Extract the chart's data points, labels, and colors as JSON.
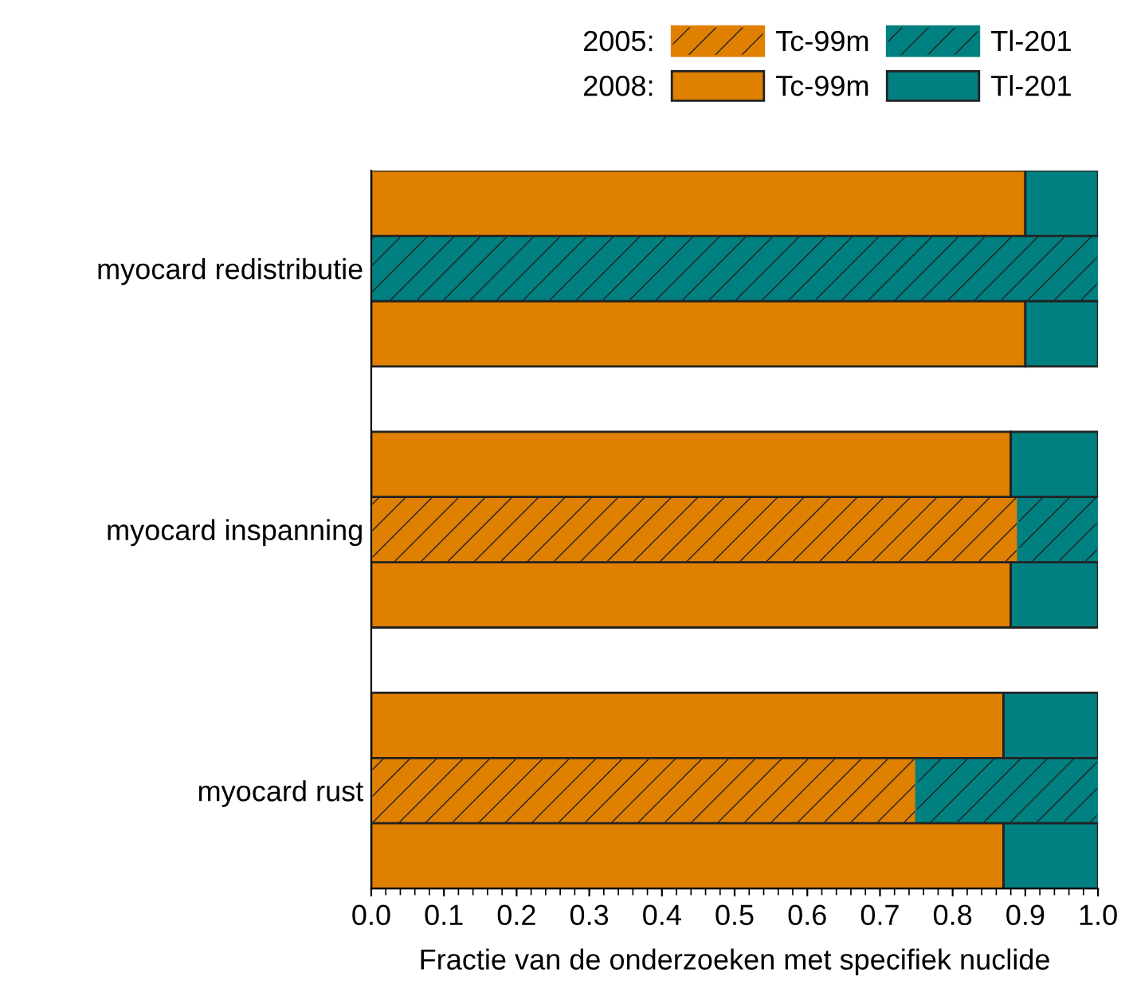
{
  "chart_data": {
    "type": "bar",
    "orientation": "horizontal",
    "stacked": true,
    "xlabel": "Fractie van de onderzoeken met specifiek nuclide",
    "categories": [
      null,
      "myocard redistributie",
      null,
      null,
      null,
      "myocard inspanning",
      null,
      null,
      null,
      "myocard rust",
      null
    ],
    "series": [
      {
        "name": "Tc-99m",
        "color": "#e08000",
        "values": [
          null,
          null,
          null,
          null,
          null,
          0.89,
          null,
          null,
          null,
          0.75,
          null
        ]
      },
      {
        "name": "Tl-201",
        "color": "#008080",
        "values": [
          null,
          1.0,
          null,
          null,
          null,
          0.11,
          null,
          null,
          null,
          0.25,
          null
        ]
      },
      {
        "name": "Tc-99m",
        "color": "#e08000",
        "values": [
          0.9,
          null,
          0.9,
          null,
          0.88,
          null,
          0.88,
          null,
          0.87,
          null,
          0.87
        ]
      },
      {
        "name": "Tl-201",
        "color": "#008080",
        "values": [
          0.1,
          null,
          0.1,
          null,
          0.12,
          null,
          0.12,
          null,
          0.13,
          null,
          0.13
        ]
      }
    ],
    "annotations": [
      "2005:",
      "2008:"
    ],
    "xlim": [
      0,
      1.0
    ],
    "xticks": [
      {
        "value": 0,
        "label": "0.0"
      },
      0.1,
      0.2,
      0.3,
      0.4,
      0.5,
      0.6,
      0.7,
      0.8,
      0.9,
      {
        "value": 1.0,
        "label": "1.0"
      }
    ],
    "legend": "top right",
    "grid": false
  }
}
